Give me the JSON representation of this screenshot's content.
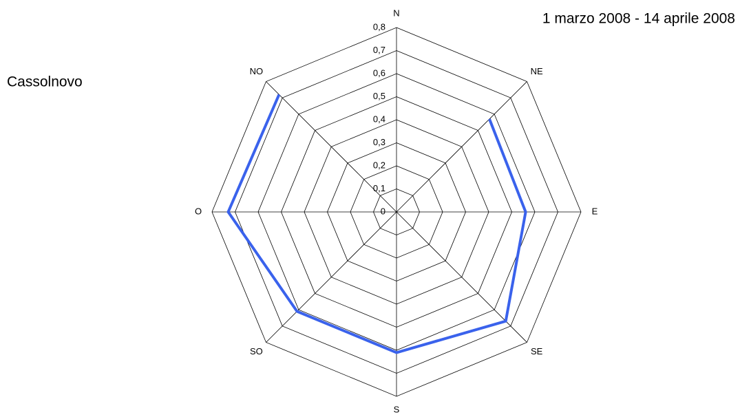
{
  "chart_data": {
    "type": "radar",
    "title": "1 marzo 2008 - 14 aprile 2008",
    "subtitle": "Cassolnovo",
    "categories": [
      "N",
      "NE",
      "E",
      "SE",
      "S",
      "SO",
      "O",
      "NO"
    ],
    "series": [
      {
        "color": "#3a62ec",
        "values": [
          null,
          0.57,
          0.56,
          0.67,
          0.61,
          0.61,
          0.73,
          0.72
        ]
      }
    ],
    "ylim": [
      0,
      0.8
    ],
    "yticks": [
      0,
      {
        "value": 0.1,
        "label": "0,1"
      },
      {
        "value": 0.2,
        "label": "0,2"
      },
      {
        "value": 0.3,
        "label": "0,3"
      },
      {
        "value": 0.4,
        "label": "0,4"
      },
      {
        "value": 0.5,
        "label": "0,5"
      },
      {
        "value": 0.6,
        "label": "0,6"
      },
      {
        "value": 0.7,
        "label": "0,7"
      },
      {
        "value": 0.8,
        "label": "0,8"
      }
    ],
    "grid": true
  }
}
